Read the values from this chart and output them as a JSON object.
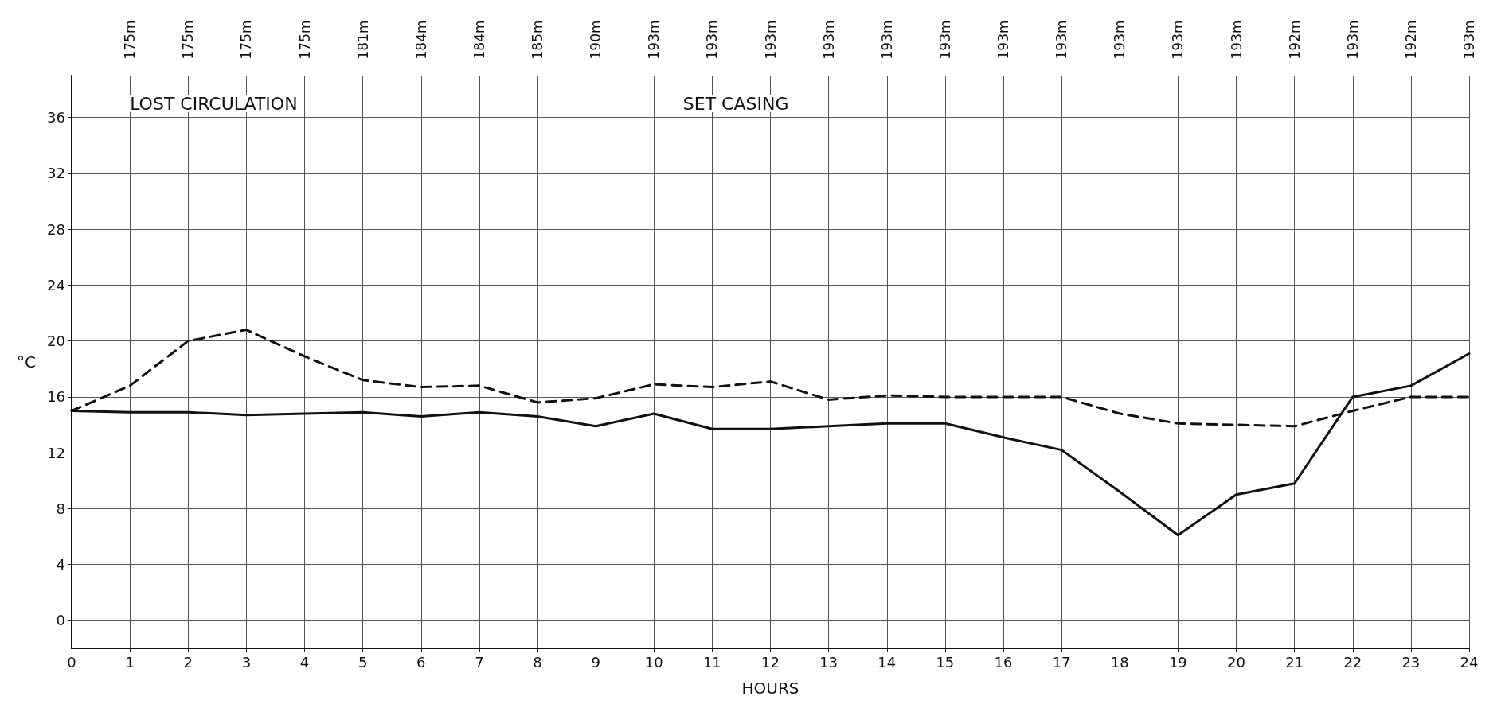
{
  "chart_data": {
    "type": "line",
    "xlabel": "HOURS",
    "ylabel": "°C",
    "x": [
      0,
      1,
      2,
      3,
      4,
      5,
      6,
      7,
      8,
      9,
      10,
      11,
      12,
      13,
      14,
      15,
      16,
      17,
      18,
      19,
      20,
      21,
      22,
      23,
      24
    ],
    "series": [
      {
        "color": "#111111",
        "line_style": "solid",
        "values": [
          15,
          14.9,
          14.9,
          14.7,
          14.8,
          14.9,
          14.6,
          14.9,
          14.6,
          13.9,
          14.8,
          13.7,
          13.7,
          13.9,
          14.1,
          14.1,
          13.1,
          12.2,
          9.2,
          6.1,
          9,
          9.8,
          16,
          16.8,
          19.1
        ]
      },
      {
        "color": "#111111",
        "line_style": "dashed",
        "values": [
          15,
          16.8,
          20,
          20.8,
          18.9,
          17.2,
          16.7,
          16.8,
          15.6,
          15.9,
          16.9,
          16.7,
          17.1,
          15.8,
          16.1,
          16,
          16,
          16,
          14.8,
          14.1,
          14,
          13.9,
          15,
          16,
          16
        ]
      }
    ],
    "xlim": [
      0,
      24
    ],
    "xticks": [
      0,
      1,
      2,
      3,
      4,
      5,
      6,
      7,
      8,
      9,
      10,
      11,
      12,
      13,
      14,
      15,
      16,
      17,
      18,
      19,
      20,
      21,
      22,
      23,
      24
    ],
    "ylim": [
      -2,
      39
    ],
    "yticks": [
      0,
      4,
      8,
      12,
      16,
      20,
      24,
      28,
      32,
      36
    ],
    "annotations": [
      "LOST CIRCULATION",
      "SET CASING",
      "175m",
      "175m",
      "175m",
      "175m",
      "181m",
      "184m",
      "184m",
      "185m",
      "190m",
      "193m",
      "193m",
      "193m",
      "193m",
      "193m",
      "193m",
      "193m",
      "193m",
      "193m",
      "193m",
      "193m",
      "192m",
      "193m",
      "192m",
      "193m"
    ],
    "grid": true,
    "marker": "none"
  }
}
